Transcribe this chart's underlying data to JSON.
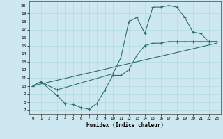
{
  "xlabel": "Humidex (Indice chaleur)",
  "bg_color": "#cde8f0",
  "line_color": "#2d6e6e",
  "xlim": [
    -0.5,
    23.5
  ],
  "ylim": [
    6.5,
    20.5
  ],
  "xticks": [
    0,
    1,
    2,
    3,
    4,
    5,
    6,
    7,
    8,
    9,
    10,
    11,
    12,
    13,
    14,
    15,
    16,
    17,
    18,
    19,
    20,
    21,
    22,
    23
  ],
  "yticks": [
    7,
    8,
    9,
    10,
    11,
    12,
    13,
    14,
    15,
    16,
    17,
    18,
    19,
    20
  ],
  "curve1_x": [
    0,
    1,
    3,
    10,
    11,
    12,
    13,
    14,
    15,
    16,
    17,
    18,
    19,
    20,
    21,
    22,
    23
  ],
  "curve1_y": [
    10,
    10.5,
    9.5,
    11.5,
    13.5,
    18,
    18.5,
    16.5,
    19.8,
    19.8,
    20,
    19.8,
    18.5,
    16.7,
    16.5,
    15.5,
    15.5
  ],
  "curve2_x": [
    0,
    23
  ],
  "curve2_y": [
    10,
    15.3
  ],
  "curve3_x": [
    0,
    1,
    3,
    4,
    5,
    6,
    7,
    8,
    9,
    10,
    11,
    12,
    13,
    14,
    15,
    16,
    17,
    18,
    19,
    20,
    21,
    22,
    23
  ],
  "curve3_y": [
    10,
    10.5,
    8.8,
    7.8,
    7.7,
    7.3,
    7.1,
    7.8,
    9.5,
    11.3,
    11.3,
    12,
    13.8,
    15,
    15.3,
    15.3,
    15.5,
    15.5,
    15.5,
    15.5,
    15.5,
    15.5,
    15.5
  ]
}
